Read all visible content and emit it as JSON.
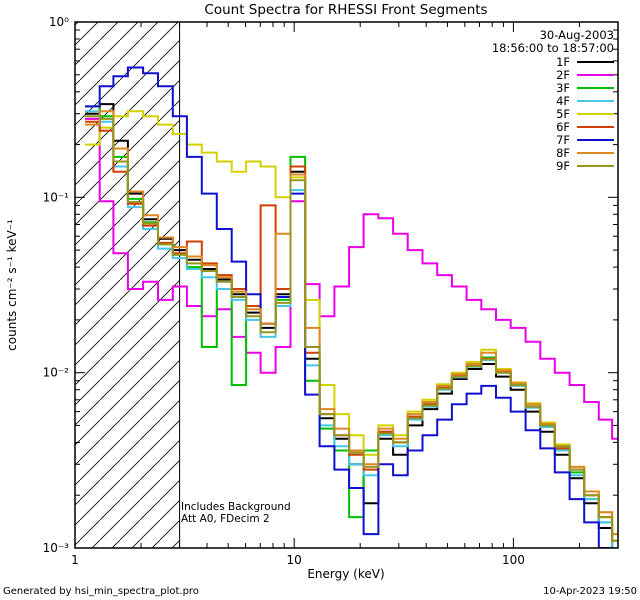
{
  "header": {
    "date": "30-Aug-2003",
    "time_range": "18:56:00 to 18:57:00"
  },
  "notes": {
    "line1": "Includes Background",
    "line2": "Att A0, FDecim 2"
  },
  "footer": {
    "left": "Generated by hsi_min_spectra_plot.pro",
    "right": "10-Apr-2023 19:50"
  },
  "axes": {
    "x_tick_labels": [
      "1",
      "10",
      "100"
    ],
    "x_tick_values": [
      1,
      10,
      100
    ],
    "y_tick_labels": [
      "10⁻³",
      "10⁻²",
      "10⁻¹",
      "10⁰"
    ],
    "y_tick_values": [
      0.001,
      0.01,
      0.1,
      1
    ]
  },
  "chart_data": {
    "type": "line",
    "title": "Count Spectra for RHESSI Front Segments",
    "xlabel": "Energy (keV)",
    "ylabel": "counts cm⁻² s⁻¹ keV⁻¹",
    "xscale": "log",
    "yscale": "log",
    "xlim": [
      1,
      300
    ],
    "ylim": [
      0.001,
      1
    ],
    "grid": false,
    "legend_position": "top-right",
    "step": true,
    "hatched_low_energy_region_keV": [
      1,
      3
    ],
    "x_keV": [
      1.2,
      1.4,
      1.6,
      1.9,
      2.2,
      2.6,
      3.0,
      3.5,
      4.1,
      4.8,
      5.6,
      6.5,
      7.6,
      8.9,
      10.4,
      12.1,
      14.1,
      16.5,
      19.2,
      22.4,
      26.2,
      30.5,
      35.6,
      41.6,
      48.5,
      56.6,
      66.1,
      77.1,
      90,
      105,
      123,
      143,
      167,
      195,
      227,
      265,
      300
    ],
    "series": [
      {
        "name": "1F",
        "color": "#000000",
        "values": [
          0.3,
          0.34,
          0.21,
          0.105,
          0.075,
          0.058,
          0.05,
          0.044,
          0.039,
          0.034,
          0.028,
          0.022,
          0.018,
          0.028,
          0.14,
          0.012,
          0.0055,
          0.0042,
          0.003,
          0.0018,
          0.0042,
          0.0034,
          0.005,
          0.0062,
          0.0076,
          0.0092,
          0.0105,
          0.0112,
          0.0095,
          0.008,
          0.006,
          0.0046,
          0.0034,
          0.0025,
          0.0018,
          0.0013,
          0.001
        ]
      },
      {
        "name": "2F",
        "color": "#e800e8",
        "values": [
          0.28,
          0.095,
          0.048,
          0.03,
          0.033,
          0.026,
          0.031,
          0.024,
          0.021,
          0.023,
          0.016,
          0.013,
          0.01,
          0.014,
          0.095,
          0.032,
          0.021,
          0.031,
          0.052,
          0.08,
          0.076,
          0.062,
          0.05,
          0.042,
          0.036,
          0.031,
          0.026,
          0.023,
          0.02,
          0.018,
          0.015,
          0.012,
          0.01,
          0.0085,
          0.0068,
          0.0054,
          0.0042
        ]
      },
      {
        "name": "3F",
        "color": "#00c000",
        "values": [
          0.33,
          0.29,
          0.17,
          0.098,
          0.072,
          0.054,
          0.047,
          0.04,
          0.014,
          0.03,
          0.0085,
          0.024,
          0.019,
          0.026,
          0.17,
          0.009,
          0.0048,
          0.0036,
          0.0015,
          0.0036,
          0.0046,
          0.004,
          0.0056,
          0.0066,
          0.0082,
          0.0098,
          0.0112,
          0.0122,
          0.0102,
          0.0086,
          0.0064,
          0.005,
          0.0037,
          0.0027,
          0.0019,
          0.0014,
          0.001
        ]
      },
      {
        "name": "4F",
        "color": "#45c8e8",
        "values": [
          0.31,
          0.27,
          0.15,
          0.088,
          0.066,
          0.051,
          0.045,
          0.039,
          0.035,
          0.03,
          0.026,
          0.02,
          0.016,
          0.024,
          0.11,
          0.011,
          0.005,
          0.0038,
          0.003,
          0.0026,
          0.0044,
          0.0038,
          0.0054,
          0.0064,
          0.008,
          0.0094,
          0.0108,
          0.0118,
          0.01,
          0.0084,
          0.0063,
          0.0049,
          0.0036,
          0.0026,
          0.0019,
          0.0014,
          0.001
        ]
      },
      {
        "name": "5F",
        "color": "#d2d200",
        "values": [
          0.2,
          0.25,
          0.29,
          0.31,
          0.29,
          0.26,
          0.23,
          0.2,
          0.18,
          0.16,
          0.14,
          0.16,
          0.15,
          0.1,
          0.13,
          0.026,
          0.0085,
          0.0058,
          0.0044,
          0.0034,
          0.005,
          0.0044,
          0.006,
          0.007,
          0.0086,
          0.01,
          0.0115,
          0.0135,
          0.0105,
          0.0088,
          0.0067,
          0.0052,
          0.0039,
          0.0029,
          0.0021,
          0.0016,
          0.0012
        ]
      },
      {
        "name": "6F",
        "color": "#d04000",
        "values": [
          0.27,
          0.24,
          0.14,
          0.092,
          0.069,
          0.055,
          0.048,
          0.056,
          0.042,
          0.036,
          0.03,
          0.024,
          0.09,
          0.03,
          0.15,
          0.013,
          0.0058,
          0.0044,
          0.0034,
          0.0028,
          0.0046,
          0.004,
          0.0056,
          0.0066,
          0.0082,
          0.0096,
          0.011,
          0.012,
          0.0101,
          0.0085,
          0.0064,
          0.005,
          0.0037,
          0.0028,
          0.002,
          0.0015,
          0.0011
        ]
      },
      {
        "name": "7F",
        "color": "#0f0fd0",
        "values": [
          0.33,
          0.43,
          0.49,
          0.55,
          0.51,
          0.43,
          0.29,
          0.17,
          0.105,
          0.066,
          0.043,
          0.028,
          0.019,
          0.027,
          0.105,
          0.0075,
          0.0038,
          0.0028,
          0.0022,
          0.0012,
          0.003,
          0.0026,
          0.0036,
          0.0044,
          0.0054,
          0.0066,
          0.0076,
          0.0084,
          0.0072,
          0.006,
          0.0047,
          0.0037,
          0.0027,
          0.0019,
          0.0014,
          0.001,
          0.0008
        ]
      },
      {
        "name": "8F",
        "color": "#dd8822",
        "values": [
          0.26,
          0.31,
          0.19,
          0.108,
          0.079,
          0.059,
          0.052,
          0.046,
          0.041,
          0.035,
          0.029,
          0.023,
          0.019,
          0.062,
          0.135,
          0.018,
          0.0062,
          0.0048,
          0.0036,
          0.003,
          0.0048,
          0.0042,
          0.0058,
          0.0068,
          0.0084,
          0.0098,
          0.0112,
          0.013,
          0.0103,
          0.0087,
          0.0066,
          0.0051,
          0.0038,
          0.0029,
          0.0021,
          0.0016,
          0.0012
        ]
      },
      {
        "name": "9F",
        "color": "#96961e",
        "values": [
          0.29,
          0.28,
          0.16,
          0.094,
          0.071,
          0.054,
          0.047,
          0.042,
          0.038,
          0.033,
          0.027,
          0.021,
          0.017,
          0.025,
          0.125,
          0.014,
          0.0058,
          0.0044,
          0.0035,
          0.0029,
          0.0045,
          0.004,
          0.0055,
          0.0065,
          0.0081,
          0.0095,
          0.0109,
          0.0119,
          0.01,
          0.0085,
          0.0064,
          0.005,
          0.0038,
          0.0028,
          0.002,
          0.0015,
          0.0011
        ]
      }
    ]
  }
}
